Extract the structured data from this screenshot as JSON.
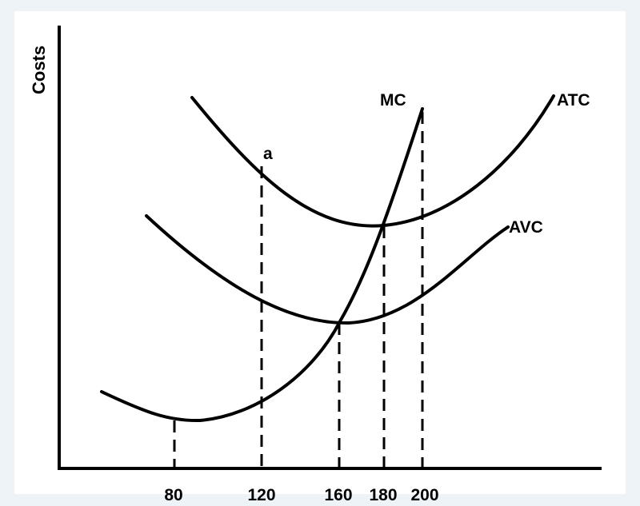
{
  "chart_data": {
    "type": "line",
    "title": "",
    "xlabel": "",
    "ylabel": "Costs",
    "x_ticks": [
      "80",
      "120",
      "160",
      "180",
      "200"
    ],
    "series": [
      {
        "name": "MC"
      },
      {
        "name": "ATC"
      },
      {
        "name": "AVC"
      }
    ],
    "annotations": [
      {
        "text": "a"
      }
    ],
    "grid": false,
    "legend": "none"
  }
}
